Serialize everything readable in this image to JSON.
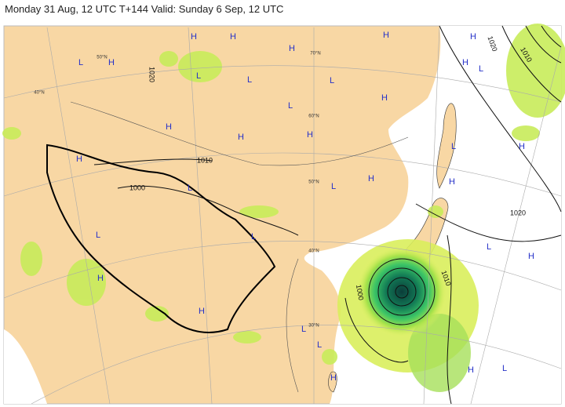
{
  "header": {
    "title": "Monday 31 Aug, 12 UTC T+144 Valid: Sunday 6 Sep, 12 UTC"
  },
  "map": {
    "pressure_centers": [
      "H",
      "H",
      "H",
      "H",
      "H",
      "L",
      "H",
      "L",
      "L",
      "L",
      "H",
      "L",
      "L",
      "H",
      "H",
      "H",
      "H",
      "L",
      "H",
      "H",
      "L",
      "L",
      "H",
      "H",
      "L",
      "L",
      "L",
      "H",
      "H",
      "H",
      "L",
      "L",
      "H",
      "H",
      "L"
    ],
    "isobar_labels": [
      "1010",
      "1000",
      "1020",
      "1010",
      "1020",
      "1010",
      "1000",
      "1020"
    ],
    "latitude_labels": [
      "70°N",
      "60°N",
      "50°N",
      "40°N",
      "50°N",
      "40°N",
      "30°N"
    ]
  }
}
